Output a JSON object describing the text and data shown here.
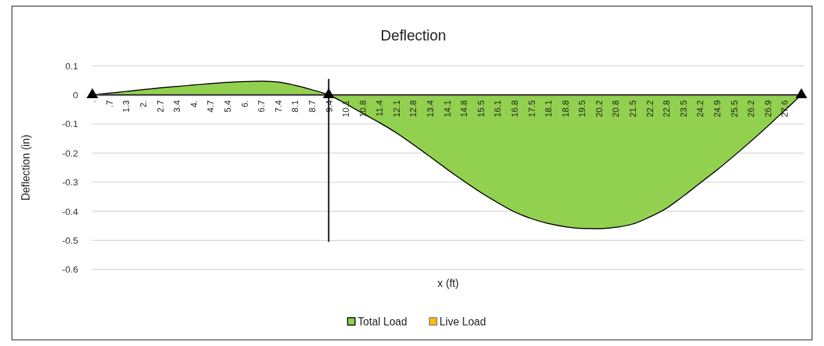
{
  "chart_data": {
    "type": "area",
    "title": "Deflection",
    "xlabel": "x (ft)",
    "ylabel": "Deflection (in)",
    "categories": [
      ".",
      ".7",
      "1.3",
      "2.",
      "2.7",
      "3.4",
      "4.",
      "4.7",
      "5.4",
      "6.",
      "6.7",
      "7.4",
      "8.1",
      "8.7",
      "9.4",
      "10.1",
      "10.8",
      "11.4",
      "12.1",
      "12.8",
      "13.4",
      "14.1",
      "14.8",
      "15.5",
      "16.1",
      "16.8",
      "17.5",
      "18.1",
      "18.8",
      "19.5",
      "20.2",
      "20.8",
      "21.5",
      "22.2",
      "22.8",
      "23.5",
      "24.2",
      "24.9",
      "25.5",
      "26.2",
      "26.9",
      "27.6",
      null
    ],
    "series": [
      {
        "name": "Total Load",
        "color": "#92d050",
        "values": [
          0,
          0.006,
          0.012,
          0.018,
          0.024,
          0.029,
          0.034,
          0.039,
          0.043,
          0.046,
          0.047,
          0.044,
          0.033,
          0.018,
          0,
          -0.03,
          -0.063,
          -0.095,
          -0.13,
          -0.17,
          -0.212,
          -0.255,
          -0.296,
          -0.335,
          -0.37,
          -0.402,
          -0.425,
          -0.442,
          -0.453,
          -0.459,
          -0.46,
          -0.455,
          -0.444,
          -0.42,
          -0.39,
          -0.348,
          -0.303,
          -0.258,
          -0.21,
          -0.16,
          -0.108,
          -0.054,
          0
        ]
      },
      {
        "name": "Live Load",
        "color": "#ffc000",
        "values": [
          null,
          null,
          null,
          null,
          null,
          null,
          null,
          null,
          null,
          null,
          null,
          null,
          null,
          null,
          null,
          null,
          null,
          null,
          null,
          null,
          null,
          null,
          null,
          null,
          null,
          null,
          null,
          null,
          null,
          null,
          null,
          null,
          null,
          null,
          null,
          null,
          null,
          null,
          null,
          null,
          null,
          null,
          null
        ]
      },
      {
        "type": "scatter",
        "marker": "triangle",
        "color": "#000000",
        "values": [
          0,
          null,
          null,
          null,
          null,
          null,
          null,
          null,
          null,
          null,
          null,
          null,
          null,
          null,
          0,
          null,
          null,
          null,
          null,
          null,
          null,
          null,
          null,
          null,
          null,
          null,
          null,
          null,
          null,
          null,
          null,
          null,
          null,
          null,
          null,
          null,
          null,
          null,
          null,
          null,
          null,
          null,
          0
        ]
      },
      {
        "type": "line",
        "color": "#000000",
        "x": [
          "9.4",
          "9.4"
        ],
        "values": [
          0.055,
          -0.505
        ]
      }
    ],
    "ylim": [
      -0.6,
      0.1
    ],
    "yticks": [
      -0.6,
      -0.5,
      -0.4,
      -0.3,
      -0.2,
      -0.1,
      0,
      0.1
    ],
    "grid": "y",
    "legend": "bottom"
  }
}
